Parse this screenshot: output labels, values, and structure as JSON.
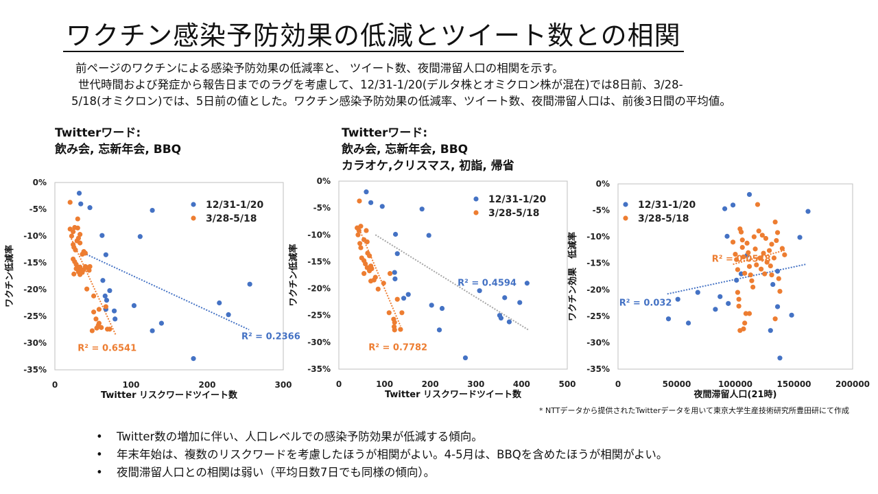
{
  "title": "ワクチン感染予防効果の低減とツイート数との相関",
  "intro": [
    "前ページのワクチンによる感染予防効果の低減率と、 ツイート数、夜間滞留人口の相関を示す。",
    "世代時間および発症から報告日までのラグを考慮して、12/31-1/20(デルタ株とオミクロン株が混在)では8日前、3/28-",
    "5/18(オミクロン)では、5日前の値とした。ワクチン感染予防効果の低減率、ツイート数、夜間滞留人口は、前後3日間の平均値。"
  ],
  "chart_labels": [
    [
      "Twitterワード:",
      "飲み会, 忘新年会, BBQ"
    ],
    [
      "Twitterワード:",
      "飲み会, 忘新年会, BBQ",
      "カラオケ,クリスマス, 初詣, 帰省"
    ]
  ],
  "note": "* NTTデータから提供されたTwitterデータを用いて東京大学生産技術研究所豊田研にて作成",
  "bullets": [
    "Twitter数の増加に伴い、人口レベルでの感染予防効果が低減する傾向。",
    "年末年始は、複数のリスクワードを考慮したほうが相関がよい。4-5月は、BBQを含めたほうが相関がよい。",
    "夜間滞留人口との相関は弱い（平均日数7日でも同様の傾向）。"
  ],
  "colors": {
    "blue": "#4472C4",
    "orange": "#ED7D31",
    "grid": "#bfbfbf",
    "trend_gray": "#a5a5a5"
  },
  "chart_data": [
    {
      "type": "scatter",
      "xlabel": "Twitter リスクワードツイート数",
      "ylabel": "ワクチン低減率",
      "xlim": [
        0,
        300
      ],
      "ylim": [
        -35,
        0
      ],
      "xticks": [
        0,
        100,
        200,
        300
      ],
      "yticks": [
        0,
        -5,
        -10,
        -15,
        -20,
        -25,
        -30,
        -35
      ],
      "ytick_labels": [
        "0%",
        "-5%",
        "-10%",
        "-15%",
        "-20%",
        "-25%",
        "-30%",
        "-35%"
      ],
      "legend": "top-right",
      "series": [
        {
          "name": "12/31-1/20",
          "color": "#4472C4",
          "r2": "R² = 0.2366",
          "r2_at": [
            245,
            -29.3
          ],
          "trend": [
            [
              35,
              -13
            ],
            [
              255,
              -27.5
            ]
          ],
          "points": [
            [
              32,
              -2
            ],
            [
              34,
              -4
            ],
            [
              46,
              -4.7
            ],
            [
              62,
              -9.9
            ],
            [
              67,
              -13.5
            ],
            [
              63,
              -18.3
            ],
            [
              66,
              -21.2
            ],
            [
              68,
              -22
            ],
            [
              72,
              -20.2
            ],
            [
              67,
              -23.7
            ],
            [
              78,
              -24
            ],
            [
              79,
              -25.5
            ],
            [
              104,
              -23
            ],
            [
              112,
              -10.1
            ],
            [
              128,
              -5.2
            ],
            [
              128,
              -27.7
            ],
            [
              140,
              -26.3
            ],
            [
              182,
              -32.9
            ],
            [
              216,
              -22.5
            ],
            [
              228,
              -24.7
            ],
            [
              256,
              -19
            ]
          ]
        },
        {
          "name": "3/28-5/18",
          "color": "#ED7D31",
          "r2": "R² = 0.6541",
          "r2_at": [
            30,
            -31.5
          ],
          "trend": [
            [
              20,
              -10
            ],
            [
              80,
              -28.5
            ]
          ],
          "points": [
            [
              20,
              -3.7
            ],
            [
              20,
              -8.7
            ],
            [
              22,
              -10
            ],
            [
              24,
              -9.2
            ],
            [
              26,
              -8.4
            ],
            [
              29,
              -10.9
            ],
            [
              30,
              -6.8
            ],
            [
              30,
              -8.5
            ],
            [
              33,
              -9.7
            ],
            [
              31,
              -10.4
            ],
            [
              33,
              -11.3
            ],
            [
              24,
              -11.6
            ],
            [
              25,
              -12.1
            ],
            [
              27,
              -12.6
            ],
            [
              24,
              -14.3
            ],
            [
              26,
              -14.8
            ],
            [
              28,
              -15.3
            ],
            [
              30,
              -15.8
            ],
            [
              33,
              -15.8
            ],
            [
              36,
              -13.4
            ],
            [
              38,
              -12.9
            ],
            [
              39,
              -13.2
            ],
            [
              40,
              -13.2
            ],
            [
              25,
              -17.1
            ],
            [
              28,
              -16.1
            ],
            [
              31,
              -16.7
            ],
            [
              34,
              -16.2
            ],
            [
              36,
              -16.8
            ],
            [
              33,
              -17.2
            ],
            [
              38,
              -16.3
            ],
            [
              40,
              -15.7
            ],
            [
              43,
              -15.9
            ],
            [
              46,
              -15.7
            ],
            [
              45,
              -16.4
            ],
            [
              42,
              -19.9
            ],
            [
              51,
              -21.2
            ],
            [
              58,
              -23.7
            ],
            [
              51,
              -24.2
            ],
            [
              54,
              -25.5
            ],
            [
              58,
              -26.3
            ],
            [
              55,
              -27.2
            ],
            [
              57,
              -26.7
            ],
            [
              61,
              -27.1
            ],
            [
              49,
              -27.7
            ],
            [
              69,
              -27.4
            ],
            [
              67,
              -23.2
            ],
            [
              72,
              -27.4
            ]
          ]
        }
      ]
    },
    {
      "type": "scatter",
      "xlabel": "Twitter リスクワードツイート数",
      "ylabel": "ワクチン低減率",
      "xlim": [
        0,
        500
      ],
      "ylim": [
        -35,
        0
      ],
      "xticks": [
        0,
        100,
        200,
        300,
        400,
        500
      ],
      "yticks": [
        0,
        -5,
        -10,
        -15,
        -20,
        -25,
        -30,
        -35
      ],
      "ytick_labels": [
        "0%",
        "-5%",
        "-10%",
        "-15%",
        "-20%",
        "-25%",
        "-30%",
        "-35%"
      ],
      "legend": "top-right",
      "series": [
        {
          "name": "12/31-1/20",
          "color": "#4472C4",
          "r2": "R² = 0.4594",
          "r2_at": [
            260,
            -19.5
          ],
          "trend": [
            [
              80,
              -10
            ],
            [
              415,
              -27.7
            ]
          ],
          "points": [
            [
              60,
              -2
            ],
            [
              70,
              -4
            ],
            [
              95,
              -4.7
            ],
            [
              124,
              -9.9
            ],
            [
              128,
              -13.5
            ],
            [
              122,
              -17
            ],
            [
              123,
              -18.2
            ],
            [
              142,
              -21.8
            ],
            [
              152,
              -21.1
            ],
            [
              182,
              -5.2
            ],
            [
              197,
              -10.1
            ],
            [
              203,
              -23.1
            ],
            [
              220,
              -27.7
            ],
            [
              226,
              -23.7
            ],
            [
              277,
              -32.9
            ],
            [
              308,
              -20.4
            ],
            [
              352,
              -25
            ],
            [
              355,
              -25.5
            ],
            [
              363,
              -21.7
            ],
            [
              373,
              -26.2
            ],
            [
              396,
              -22.6
            ],
            [
              412,
              -19
            ]
          ]
        },
        {
          "name": "3/28-5/18",
          "color": "#ED7D31",
          "r2": "R² = 0.7782",
          "r2_at": [
            65,
            -31.5
          ],
          "trend": [
            [
              45,
              -9
            ],
            [
              135,
              -27
            ]
          ],
          "points": [
            [
              45,
              -3.7
            ],
            [
              40,
              -8.7
            ],
            [
              42,
              -10
            ],
            [
              44,
              -9.2
            ],
            [
              48,
              -8.4
            ],
            [
              55,
              -10.9
            ],
            [
              60,
              -9.2
            ],
            [
              62,
              -11.3
            ],
            [
              46,
              -11.6
            ],
            [
              48,
              -12.4
            ],
            [
              50,
              -14.3
            ],
            [
              55,
              -14.8
            ],
            [
              58,
              -15.4
            ],
            [
              63,
              -13.4
            ],
            [
              67,
              -13.9
            ],
            [
              62,
              -16.1
            ],
            [
              67,
              -16.7
            ],
            [
              70,
              -15.8
            ],
            [
              72,
              -16.3
            ],
            [
              55,
              -17.2
            ],
            [
              77,
              -18.4
            ],
            [
              70,
              -18.6
            ],
            [
              80,
              -17.9
            ],
            [
              86,
              -20.1
            ],
            [
              98,
              -19
            ],
            [
              112,
              -17.2
            ],
            [
              110,
              -24.5
            ],
            [
              120,
              -25.7
            ],
            [
              122,
              -26.3
            ],
            [
              121,
              -27.1
            ],
            [
              122,
              -27.7
            ],
            [
              138,
              -24.5
            ],
            [
              128,
              -22
            ],
            [
              135,
              -27.6
            ]
          ]
        }
      ]
    },
    {
      "type": "scatter",
      "xlabel": "夜間滞留人口(21時)",
      "ylabel": "ワクチン効果　低減率",
      "xlim": [
        0,
        200000
      ],
      "ylim": [
        -35,
        0
      ],
      "xticks": [
        0,
        50000,
        100000,
        150000,
        200000
      ],
      "yticks": [
        0,
        -5,
        -10,
        -15,
        -20,
        -25,
        -30,
        -35
      ],
      "ytick_labels": [
        "0%",
        "-5%",
        "-10%",
        "-15%",
        "-20%",
        "-25%",
        "-30%",
        "-35%"
      ],
      "legend": "top-left",
      "series": [
        {
          "name": "12/31-1/20",
          "color": "#4472C4",
          "r2": "R² = 0.032",
          "r2_at": [
            1000,
            -23
          ],
          "trend": [
            [
              42000,
              -20.8
            ],
            [
              160000,
              -15.2
            ]
          ],
          "points": [
            [
              43000,
              -25.5
            ],
            [
              51000,
              -21.8
            ],
            [
              60000,
              -26.3
            ],
            [
              68000,
              -20.5
            ],
            [
              83000,
              -23.7
            ],
            [
              87000,
              -21.3
            ],
            [
              91000,
              -4.7
            ],
            [
              93000,
              -9.9
            ],
            [
              94000,
              -22.6
            ],
            [
              98000,
              -4
            ],
            [
              101000,
              -18.2
            ],
            [
              105000,
              -17
            ],
            [
              110000,
              -13.5
            ],
            [
              112000,
              -2
            ],
            [
              130000,
              -27.7
            ],
            [
              132000,
              -19
            ],
            [
              136000,
              -23.2
            ],
            [
              136000,
              -16.5
            ],
            [
              138000,
              -32.9
            ],
            [
              148000,
              -24.8
            ],
            [
              155000,
              -10.1
            ],
            [
              162000,
              -5.2
            ]
          ]
        },
        {
          "name": "3/28-5/18",
          "color": "#ED7D31",
          "r2": "R² = 0.0548",
          "r2_at": [
            80000,
            -14.7
          ],
          "trend": [
            [
              98000,
              -15.2
            ],
            [
              143000,
              -12.5
            ]
          ],
          "points": [
            [
              98000,
              -11
            ],
            [
              100000,
              -13.3
            ],
            [
              101000,
              -14.3
            ],
            [
              102000,
              -16.2
            ],
            [
              102000,
              -20.5
            ],
            [
              103000,
              -21.8
            ],
            [
              103000,
              -23.1
            ],
            [
              104000,
              -27.7
            ],
            [
              104000,
              -8.5
            ],
            [
              105000,
              -9.1
            ],
            [
              106000,
              -10.6
            ],
            [
              106000,
              -12
            ],
            [
              107000,
              -13.8
            ],
            [
              108000,
              -16.9
            ],
            [
              109000,
              -24.5
            ],
            [
              108000,
              -26.3
            ],
            [
              107000,
              -27.4
            ],
            [
              110000,
              -11.2
            ],
            [
              111000,
              -13
            ],
            [
              112000,
              -15.6
            ],
            [
              113000,
              -17.2
            ],
            [
              114000,
              -18.3
            ],
            [
              115000,
              -19.5
            ],
            [
              112000,
              -24.5
            ],
            [
              116000,
              -10
            ],
            [
              117000,
              -12.3
            ],
            [
              118000,
              -15.3
            ],
            [
              119000,
              -3.9
            ],
            [
              120000,
              -8.9
            ],
            [
              121000,
              -14
            ],
            [
              122000,
              -16.1
            ],
            [
              123000,
              -9.7
            ],
            [
              124000,
              -13.1
            ],
            [
              125000,
              -17
            ],
            [
              126000,
              -10.3
            ],
            [
              127000,
              -14.8
            ],
            [
              129000,
              -12.6
            ],
            [
              130000,
              -15.5
            ],
            [
              131000,
              -11.4
            ],
            [
              133000,
              -14
            ],
            [
              134000,
              -7.2
            ],
            [
              135000,
              -10.7
            ],
            [
              136000,
              -9.2
            ],
            [
              137000,
              -17.9
            ],
            [
              138000,
              -20.3
            ],
            [
              140000,
              -12.2
            ],
            [
              142000,
              -13.4
            ],
            [
              134000,
              -25.5
            ],
            [
              131000,
              -17.2
            ]
          ]
        }
      ]
    }
  ]
}
